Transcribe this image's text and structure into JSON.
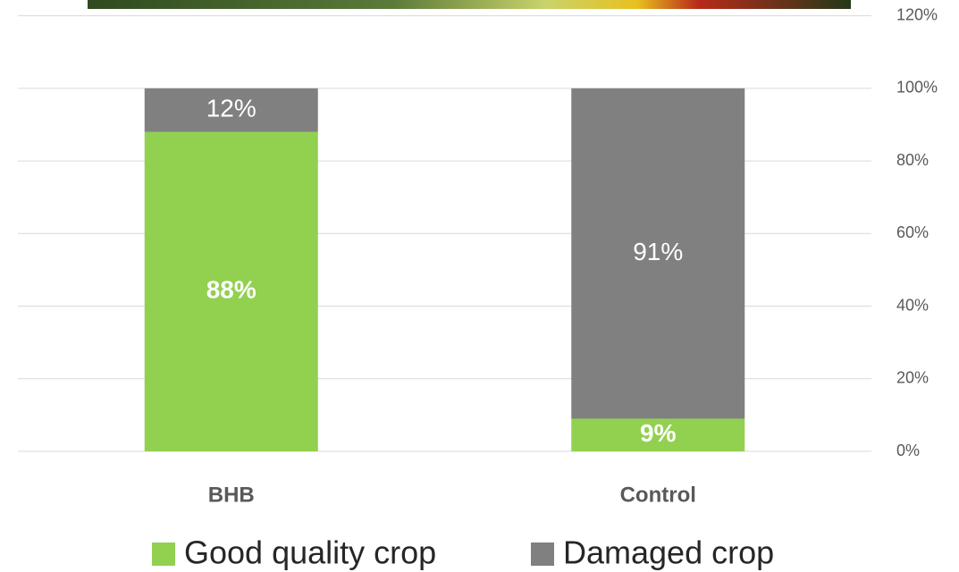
{
  "chart_data": {
    "type": "stacked_bar",
    "categories": [
      "BHB",
      "Control"
    ],
    "series": [
      {
        "name": "Good quality crop",
        "color": "#92d050",
        "values": [
          88,
          9
        ],
        "value_labels": [
          "88%",
          "9%"
        ]
      },
      {
        "name": "Damaged crop",
        "color": "#808080",
        "values": [
          12,
          91
        ],
        "value_labels": [
          "12%",
          "91%"
        ]
      }
    ],
    "ylim": [
      0,
      120
    ],
    "yticks": [
      {
        "value": 0,
        "label": "0%"
      },
      {
        "value": 20,
        "label": "20%"
      },
      {
        "value": 40,
        "label": "40%"
      },
      {
        "value": 60,
        "label": "60%"
      },
      {
        "value": 80,
        "label": "80%"
      },
      {
        "value": 100,
        "label": "100%"
      },
      {
        "value": 120,
        "label": "120%"
      }
    ],
    "grid": true,
    "legend": "bottom"
  }
}
